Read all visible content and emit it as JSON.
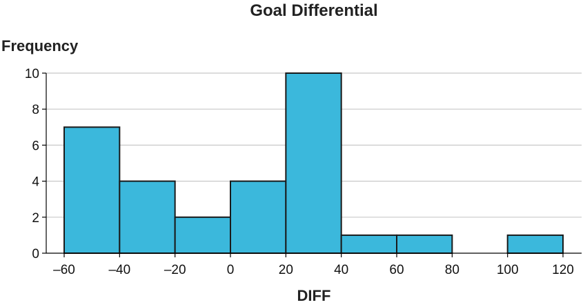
{
  "chart_data": {
    "type": "bar",
    "title": "Goal Differential",
    "xlabel": "DIFF",
    "ylabel": "Frequency",
    "bins": [
      {
        "start": -60,
        "end": -40,
        "count": 7
      },
      {
        "start": -40,
        "end": -20,
        "count": 4
      },
      {
        "start": -20,
        "end": 0,
        "count": 2
      },
      {
        "start": 0,
        "end": 20,
        "count": 4
      },
      {
        "start": 20,
        "end": 40,
        "count": 10
      },
      {
        "start": 40,
        "end": 60,
        "count": 1
      },
      {
        "start": 60,
        "end": 80,
        "count": 1
      },
      {
        "start": 80,
        "end": 100,
        "count": 0
      },
      {
        "start": 100,
        "end": 120,
        "count": 1
      }
    ],
    "xticks": [
      "–60",
      "–40",
      "–20",
      "0",
      "20",
      "40",
      "60",
      "80",
      "100",
      "120"
    ],
    "yticks": [
      "0",
      "2",
      "4",
      "6",
      "8",
      "10"
    ],
    "xlim": [
      -60,
      120
    ],
    "ylim": [
      0,
      10
    ],
    "grid": true,
    "bar_color": "#3bb8dc",
    "edge_color": "#1a1a1a"
  }
}
